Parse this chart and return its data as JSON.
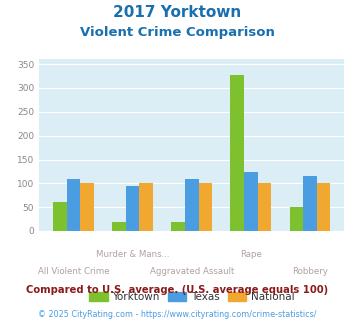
{
  "title_line1": "2017 Yorktown",
  "title_line2": "Violent Crime Comparison",
  "categories": [
    "All Violent Crime",
    "Murder & Mans...",
    "Aggravated Assault",
    "Rape",
    "Robbery"
  ],
  "category_labels_row1": [
    "",
    "Murder & Mans...",
    "",
    "Rape",
    ""
  ],
  "category_labels_row2": [
    "All Violent Crime",
    "",
    "Aggravated Assault",
    "",
    "Robbery"
  ],
  "yorktown": [
    60,
    18,
    18,
    328,
    50
  ],
  "texas": [
    110,
    95,
    110,
    124,
    116
  ],
  "national": [
    100,
    100,
    100,
    100,
    100
  ],
  "colors": {
    "yorktown": "#7dc22e",
    "texas": "#4a9de0",
    "national": "#f0a830"
  },
  "ylim": [
    0,
    360
  ],
  "yticks": [
    0,
    50,
    100,
    150,
    200,
    250,
    300,
    350
  ],
  "title_color": "#1a6faf",
  "bg_color": "#dceef5",
  "label_color": "#b0a0a0",
  "footnote1": "Compared to U.S. average. (U.S. average equals 100)",
  "footnote2": "© 2025 CityRating.com - https://www.cityrating.com/crime-statistics/",
  "footnote1_color": "#8b1a1a",
  "footnote2_color": "#4a9de0"
}
